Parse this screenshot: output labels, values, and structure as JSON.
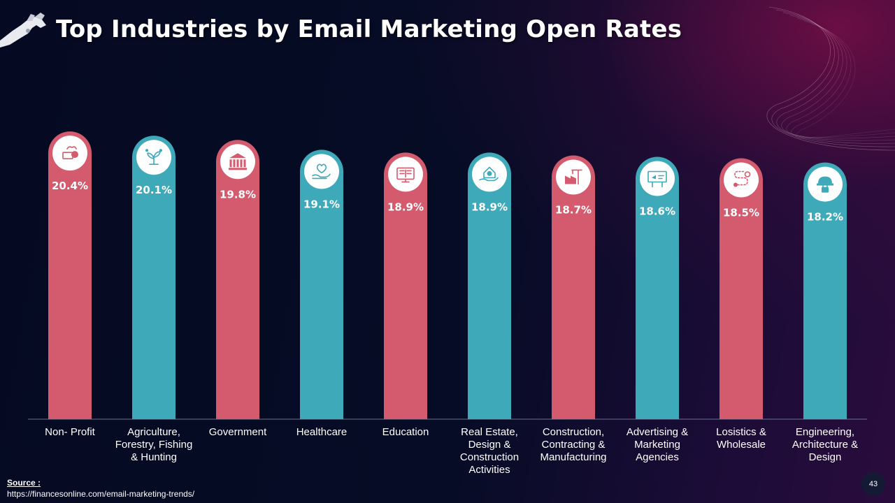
{
  "slide": {
    "title": "Top Industries by Email Marketing Open Rates",
    "source_label": "Source :",
    "source_url": "https://financesonline.com/email-marketing-trends/",
    "page_number": "43"
  },
  "colors": {
    "red": "#d45a6e",
    "teal": "#3ea9b9",
    "axis": "#6a7088",
    "icon_bg": "#ffffff"
  },
  "chart_data": {
    "type": "bar",
    "categories": [
      "Non- Profit",
      "Agriculture, Forestry, Fishing & Hunting",
      "Government",
      "Healthcare",
      "Education",
      "Real Estate, Design & Construction Activities",
      "Construction, Contracting & Manufacturing",
      "Advertising & Marketing Agencies",
      "Losistics & Wholesale",
      "Engineering, Architecture & Design"
    ],
    "category_lines": [
      [
        "Non- Profit"
      ],
      [
        "Agriculture,",
        "Forestry, Fishing",
        "& Hunting"
      ],
      [
        "Government"
      ],
      [
        "Healthcare"
      ],
      [
        "Education"
      ],
      [
        "Real Estate,",
        "Design &",
        "Construction",
        "Activities"
      ],
      [
        "Construction,",
        "Contracting &",
        "Manufacturing"
      ],
      [
        "Advertising &",
        "Marketing",
        "Agencies"
      ],
      [
        "Losistics &",
        "Wholesale"
      ],
      [
        "Engineering,",
        "Architecture &",
        "Design"
      ]
    ],
    "values": [
      20.4,
      20.1,
      19.8,
      19.1,
      18.9,
      18.9,
      18.7,
      18.6,
      18.5,
      18.2
    ],
    "value_labels": [
      "20.4%",
      "20.1%",
      "19.8%",
      "19.1%",
      "18.9%",
      "18.9%",
      "18.7%",
      "18.6%",
      "18.5%",
      "18.2%"
    ],
    "bar_colors": [
      "red",
      "teal",
      "red",
      "teal",
      "red",
      "teal",
      "red",
      "teal",
      "red",
      "teal"
    ],
    "icons": [
      "donation-icon",
      "agriculture-plant-icon",
      "government-building-icon",
      "healthcare-heart-icon",
      "education-book-icon",
      "real-estate-house-icon",
      "construction-factory-icon",
      "advertising-billboard-icon",
      "logistics-route-icon",
      "engineering-helmet-icon"
    ],
    "ylim": [
      0,
      21.2
    ],
    "grid": false,
    "legend": "none"
  }
}
